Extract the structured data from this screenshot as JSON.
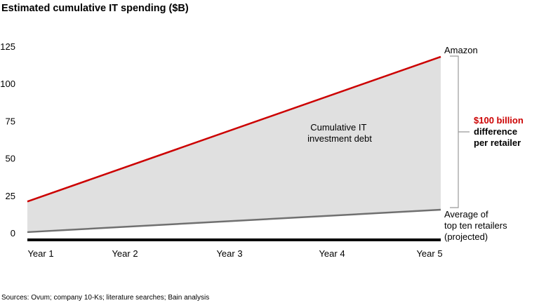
{
  "chart_data": {
    "type": "area",
    "title": "Estimated cumulative IT spending ($B)",
    "xlabel": "",
    "ylabel": "",
    "categories": [
      "Year 1",
      "Year 2",
      "Year 3",
      "Year 4",
      "Year 5"
    ],
    "ylim": [
      0,
      125
    ],
    "yticks": [
      0,
      25,
      50,
      75,
      100,
      125
    ],
    "grid": false,
    "series": [
      {
        "name": "Amazon",
        "color": "#cc0000",
        "start": 21,
        "end": 118
      },
      {
        "name": "Average of top ten retailers (projected)",
        "label_lines": [
          "Average of",
          "top ten retailers",
          "(projected)"
        ],
        "color": "#707070",
        "start": 0.5,
        "end": 15.5
      }
    ],
    "fill_color": "#e0e0e0",
    "area_label_lines": [
      "Cumulative IT",
      "investment debt"
    ],
    "bracket_annotation": {
      "highlight": "$100 billion",
      "highlight_color": "#cc0000",
      "lines": [
        "difference",
        "per retailer"
      ]
    },
    "source": "Sources: Ovum; company 10-Ks; literature searches; Bain analysis"
  }
}
